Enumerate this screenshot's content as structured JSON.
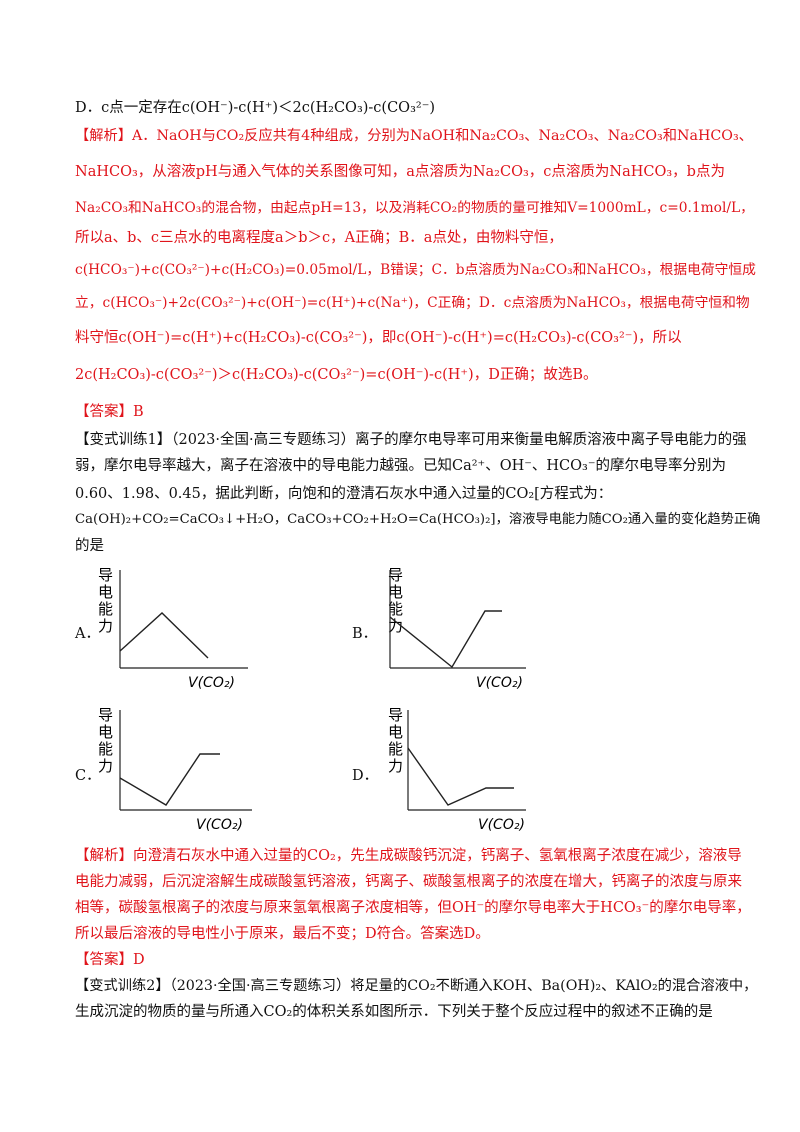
{
  "lines": {
    "d_option": "D．c点一定存在c(OH⁻)-c(H⁺)＜2c(H₂CO₃)-c(CO₃²⁻)",
    "jiexi_tag": "【解析】",
    "e1": "A．NaOH与CO₂反应共有4种组成，分别为NaOH和Na₂CO₃、Na₂CO₃、Na₂CO₃和NaHCO₃、",
    "e2": "NaHCO₃，从溶液pH与通入气体的关系图像可知，a点溶质为Na₂CO₃，c点溶质为NaHCO₃，b点为",
    "e3": "Na₂CO₃和NaHCO₃的混合物，由起点pH=13，以及消耗CO₂的物质的量可推知V=1000mL，c=0.1mol/L，",
    "e4": "所以a、b、c三点水的电离程度a＞b＞c，A正确；B．a点处，由物料守恒，",
    "e5": "c(HCO₃⁻)+c(CO₃²⁻)+c(H₂CO₃)=0.05mol/L，B错误；C．b点溶质为Na₂CO₃和NaHCO₃，根据电荷守恒成",
    "e6": "立，c(HCO₃⁻)+2c(CO₃²⁻)+c(OH⁻)=c(H⁺)+c(Na⁺)，C正确；D．c点溶质为NaHCO₃，根据电荷守恒和物",
    "e7": "料守恒c(OH⁻)=c(H⁺)+c(H₂CO₃)-c(CO₃²⁻)，即c(OH⁻)-c(H⁺)=c(H₂CO₃)-c(CO₃²⁻)，所以",
    "e8": "2c(H₂CO₃)-c(CO₃²⁻)＞c(H₂CO₃)-c(CO₃²⁻)=c(OH⁻)-c(H⁺)，D正确；故选B。",
    "ans1": "【答案】B",
    "t1a": "【变式训练1】（2023·全国·高三专题练习）离子的摩尔电导率可用来衡量电解质溶液中离子导电能力的强",
    "t1b": "弱，摩尔电导率越大，离子在溶液中的导电能力越强。已知Ca²⁺、OH⁻、HCO₃⁻的摩尔电导率分别为",
    "t1c": "0.60、1.98、0.45，据此判断，向饱和的澄清石灰水中通入过量的CO₂[方程式为：",
    "t1d": "Ca(OH)₂+CO₂=CaCO₃↓+H₂O，CaCO₃+CO₂+H₂O=Ca(HCO₃)₂]，溶液导电能力随CO₂通入量的变化趋势正确",
    "t1e": "的是",
    "a2": "【解析】向澄清石灰水中通入过量的CO₂，先生成碳酸钙沉淀，钙离子、氢氧根离子浓度在减少，溶液导",
    "a3": "电能力减弱，后沉淀溶解生成碳酸氢钙溶液，钙离子、碳酸氢根离子的浓度在增大，钙离子的浓度与原来",
    "a4": "相等，碳酸氢根离子的浓度与原来氢氧根离子浓度相等，但OH⁻的摩尔导电率大于HCO₃⁻的摩尔电导率，",
    "a5": "所以最后溶液的导电性小于原来，最后不变；D符合。答案选D。",
    "ans2": "【答案】D",
    "t2a": "【变式训练2】（2023·全国·高三专题练习）将足量的CO₂不断通入KOH、Ba(OH)₂、KAlO₂的混合溶液中，",
    "t2b": "生成沉淀的物质的量与所通入CO₂的体积关系如图所示．下列关于整个反应过程中的叙述不正确的是"
  },
  "graphs": {
    "ylabel": [
      "导",
      "电",
      "能",
      "力"
    ],
    "xlabel": "V(CO₂)",
    "options": [
      {
        "label": "A．",
        "shape": "rise then fall to below start"
      },
      {
        "label": "B．",
        "shape": "fall to zero then rise and level"
      },
      {
        "label": "C．",
        "shape": "fall then rise and level above start"
      },
      {
        "label": "D．",
        "shape": "fall then rise and level below start"
      }
    ]
  }
}
